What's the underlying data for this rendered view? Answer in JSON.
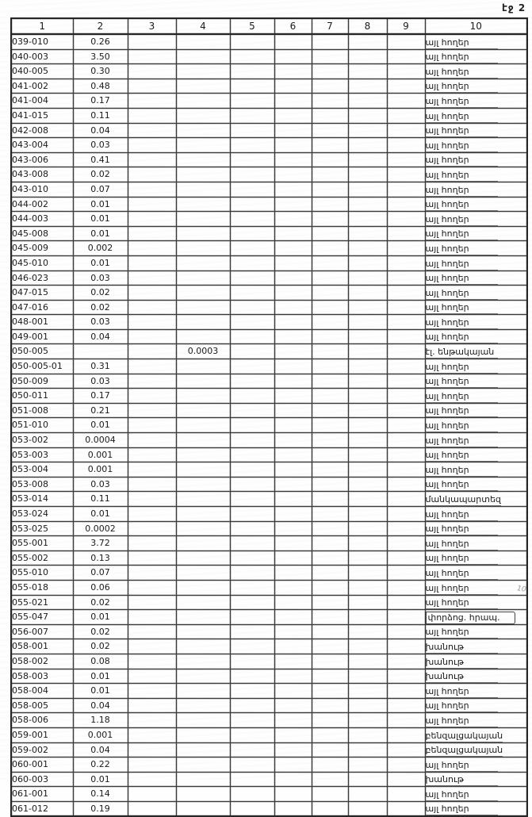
{
  "page": {
    "label": "էջ 2"
  },
  "margin_note": {
    "text": "10"
  },
  "table": {
    "headers": [
      "1",
      "2",
      "3",
      "4",
      "5",
      "6",
      "7",
      "8",
      "9",
      "10"
    ],
    "rows": [
      {
        "code": "039-010",
        "area": "0.26",
        "col4": "",
        "land_use": "այլ հողեր"
      },
      {
        "code": "040-003",
        "area": "3.50",
        "col4": "",
        "land_use": "այլ հողեր"
      },
      {
        "code": "040-005",
        "area": "0.30",
        "col4": "",
        "land_use": "այլ հողեր"
      },
      {
        "code": "041-002",
        "area": "0.48",
        "col4": "",
        "land_use": "այլ հողեր"
      },
      {
        "code": "041-004",
        "area": "0.17",
        "col4": "",
        "land_use": "այլ հողեր"
      },
      {
        "code": "041-015",
        "area": "0.11",
        "col4": "",
        "land_use": "այլ հողեր"
      },
      {
        "code": "042-008",
        "area": "0.04",
        "col4": "",
        "land_use": "այլ հողեր"
      },
      {
        "code": "043-004",
        "area": "0.03",
        "col4": "",
        "land_use": "այլ հողեր"
      },
      {
        "code": "043-006",
        "area": "0.41",
        "col4": "",
        "land_use": "այլ հողեր"
      },
      {
        "code": "043-008",
        "area": "0.02",
        "col4": "",
        "land_use": "այլ հողեր"
      },
      {
        "code": "043-010",
        "area": "0.07",
        "col4": "",
        "land_use": "այլ հողեր"
      },
      {
        "code": "044-002",
        "area": "0.01",
        "col4": "",
        "land_use": "այլ հողեր"
      },
      {
        "code": "044-003",
        "area": "0.01",
        "col4": "",
        "land_use": "այլ հողեր"
      },
      {
        "code": "045-008",
        "area": "0.01",
        "col4": "",
        "land_use": "այլ հողեր"
      },
      {
        "code": "045-009",
        "area": "0.002",
        "col4": "",
        "land_use": "այլ հողեր"
      },
      {
        "code": "045-010",
        "area": "0.01",
        "col4": "",
        "land_use": "այլ հողեր"
      },
      {
        "code": "046-023",
        "area": "0.03",
        "col4": "",
        "land_use": "այլ հողեր"
      },
      {
        "code": "047-015",
        "area": "0.02",
        "col4": "",
        "land_use": "այլ հողեր"
      },
      {
        "code": "047-016",
        "area": "0.02",
        "col4": "",
        "land_use": "այլ հողեր"
      },
      {
        "code": "048-001",
        "area": "0.03",
        "col4": "",
        "land_use": "այլ հողեր"
      },
      {
        "code": "049-001",
        "area": "0.04",
        "col4": "",
        "land_use": "այլ հողեր"
      },
      {
        "code": "050-005",
        "area": "",
        "col4": "0.0003",
        "land_use": "էլ. ենթակայան"
      },
      {
        "code": "050-005-01",
        "area": "0.31",
        "col4": "",
        "land_use": "այլ հողեր"
      },
      {
        "code": "050-009",
        "area": "0.03",
        "col4": "",
        "land_use": "այլ հողեր"
      },
      {
        "code": "050-011",
        "area": "0.17",
        "col4": "",
        "land_use": "այլ հողեր"
      },
      {
        "code": "051-008",
        "area": "0.21",
        "col4": "",
        "land_use": "այլ հողեր"
      },
      {
        "code": "051-010",
        "area": "0.01",
        "col4": "",
        "land_use": "այլ հողեր"
      },
      {
        "code": "053-002",
        "area": "0.0004",
        "col4": "",
        "land_use": "այլ հողեր"
      },
      {
        "code": "053-003",
        "area": "0.001",
        "col4": "",
        "land_use": "այլ հողեր"
      },
      {
        "code": "053-004",
        "area": "0.001",
        "col4": "",
        "land_use": "այլ հողեր"
      },
      {
        "code": "053-008",
        "area": "0.03",
        "col4": "",
        "land_use": "այլ հողեր"
      },
      {
        "code": "053-014",
        "area": "0.11",
        "col4": "",
        "land_use": "մանկապարտեզ"
      },
      {
        "code": "053-024",
        "area": "0.01",
        "col4": "",
        "land_use": "այլ հողեր"
      },
      {
        "code": "053-025",
        "area": "0.0002",
        "col4": "",
        "land_use": "այլ հողեր"
      },
      {
        "code": "055-001",
        "area": "3.72",
        "col4": "",
        "land_use": "այլ հողեր"
      },
      {
        "code": "055-002",
        "area": "0.13",
        "col4": "",
        "land_use": "այլ հողեր"
      },
      {
        "code": "055-010",
        "area": "0.07",
        "col4": "",
        "land_use": "այլ հողեր"
      },
      {
        "code": "055-018",
        "area": "0.06",
        "col4": "",
        "land_use": "այլ հողեր"
      },
      {
        "code": "055-021",
        "area": "0.02",
        "col4": "",
        "land_use": "այլ հողեր"
      },
      {
        "code": "055-047",
        "area": "0.01",
        "col4": "",
        "land_use": "փորձոց. հրապ.",
        "boxed": true
      },
      {
        "code": "056-007",
        "area": "0.02",
        "col4": "",
        "land_use": "այլ հողեր"
      },
      {
        "code": "058-001",
        "area": "0.02",
        "col4": "",
        "land_use": "խանութ"
      },
      {
        "code": "058-002",
        "area": "0.08",
        "col4": "",
        "land_use": "խանութ"
      },
      {
        "code": "058-003",
        "area": "0.01",
        "col4": "",
        "land_use": "խանութ"
      },
      {
        "code": "058-004",
        "area": "0.01",
        "col4": "",
        "land_use": "այլ հողեր"
      },
      {
        "code": "058-005",
        "area": "0.04",
        "col4": "",
        "land_use": "այլ հողեր"
      },
      {
        "code": "058-006",
        "area": "1.18",
        "col4": "",
        "land_use": "այլ հողեր"
      },
      {
        "code": "059-001",
        "area": "0.001",
        "col4": "",
        "land_use": "բենզալցակայան"
      },
      {
        "code": "059-002",
        "area": "0.04",
        "col4": "",
        "land_use": "բենզալցակայան"
      },
      {
        "code": "060-001",
        "area": "0.22",
        "col4": "",
        "land_use": "այլ հողեր"
      },
      {
        "code": "060-003",
        "area": "0.01",
        "col4": "",
        "land_use": "խանութ"
      },
      {
        "code": "061-001",
        "area": "0.14",
        "col4": "",
        "land_use": "այլ հողեր"
      },
      {
        "code": "061-012",
        "area": "0.19",
        "col4": "",
        "land_use": "այլ հողեր"
      }
    ]
  }
}
